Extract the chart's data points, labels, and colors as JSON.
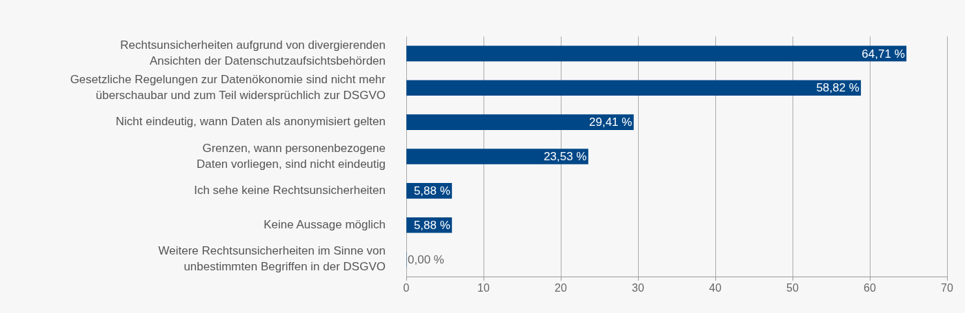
{
  "chart_data": {
    "type": "bar",
    "orientation": "horizontal",
    "categories": [
      "Rechtsunsicherheiten aufgrund von divergierenden\nAnsichten der Datenschutzaufsichtsbehörden",
      "Gesetzliche Regelungen zur Datenökonomie sind nicht mehr\nüberschaubar und zum Teil widersprüchlich zur DSGVO",
      "Nicht eindeutig, wann Daten als anonymisiert gelten",
      "Grenzen, wann personenbezogene\nDaten vorliegen, sind nicht eindeutig",
      "Ich sehe keine Rechtsunsicherheiten",
      "Keine Aussage möglich",
      "Weitere Rechtsunsicherheiten im Sinne von\nunbestimmten Begriffen in der DSGVO"
    ],
    "values": [
      64.71,
      58.82,
      29.41,
      23.53,
      5.88,
      5.88,
      0
    ],
    "value_labels": [
      "64,71 %",
      "58,82 %",
      "29,41 %",
      "23,53 %",
      "5,88 %",
      "5,88 %",
      "0,00 %"
    ],
    "color": "#004787",
    "xlim": [
      0,
      70
    ],
    "xticks": [
      0,
      10,
      20,
      30,
      40,
      50,
      60,
      70
    ],
    "grid": "x",
    "legend": false
  }
}
